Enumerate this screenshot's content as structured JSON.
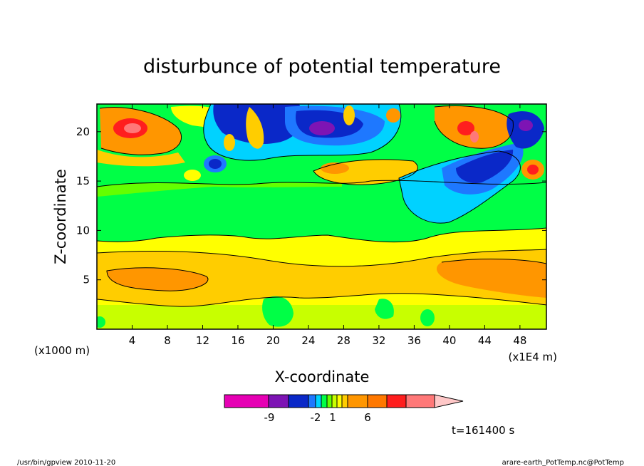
{
  "chart_data": {
    "type": "heatmap",
    "title": "disturbunce of potential temperature",
    "xlabel": "X-coordinate",
    "ylabel": "Z-coordinate",
    "x_units_left": "(x1000 m)",
    "x_units_right": "(x1E4 m)",
    "xlim": [
      0,
      51
    ],
    "ylim": [
      0,
      22.8
    ],
    "x_ticks": [
      "4",
      "8",
      "12",
      "16",
      "20",
      "24",
      "28",
      "32",
      "36",
      "40",
      "44",
      "48"
    ],
    "y_ticks": [
      "5",
      "10",
      "15",
      "20"
    ],
    "grid": false,
    "colorbar": {
      "colors": [
        "#e600b4",
        "#7d14b4",
        "#0a28c8",
        "#1e78ff",
        "#00d2ff",
        "#00ff46",
        "#64ff00",
        "#c8ff00",
        "#ffff00",
        "#ffcd00",
        "#ff9600",
        "#ff7800",
        "#ff1e1e",
        "#ff7878",
        "#ffc8c8"
      ],
      "labels": [
        "-9",
        "-2",
        "1",
        "6"
      ]
    },
    "time_label": "t=161400 s",
    "footer_left": "/usr/bin/gpview  2010-11-20",
    "footer_right": "arare-earth_PotTemp.nc@PotTemp"
  }
}
